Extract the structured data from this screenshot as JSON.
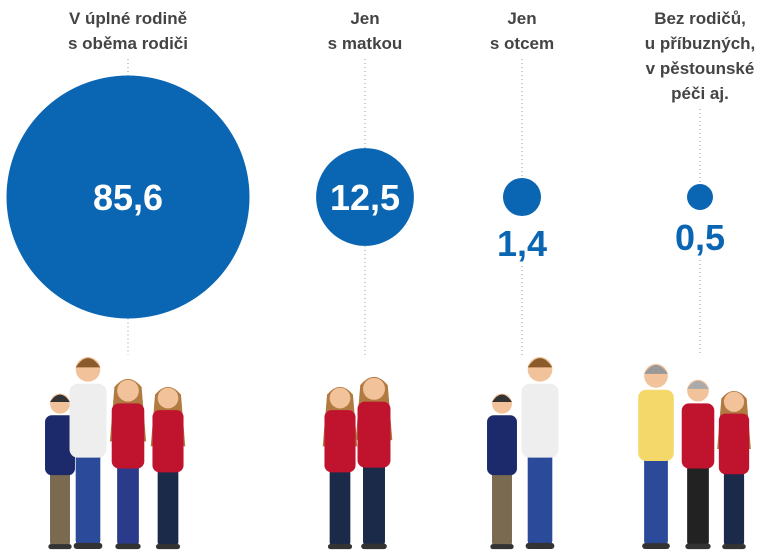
{
  "chart_data": {
    "type": "bubble",
    "categories": [
      [
        "V úplné rodině",
        "s oběma rodiči"
      ],
      [
        "Jen",
        "s matkou"
      ],
      [
        "Jen",
        "s otcem"
      ],
      [
        "Bez rodičů,",
        "u příbuzných,",
        "v pěstounské",
        "péči aj."
      ]
    ],
    "values": [
      85.6,
      12.5,
      1.4,
      0.5
    ],
    "value_labels": [
      "85,6",
      "12,5",
      "1,4",
      "0,5"
    ],
    "color": "#0a66b3"
  }
}
